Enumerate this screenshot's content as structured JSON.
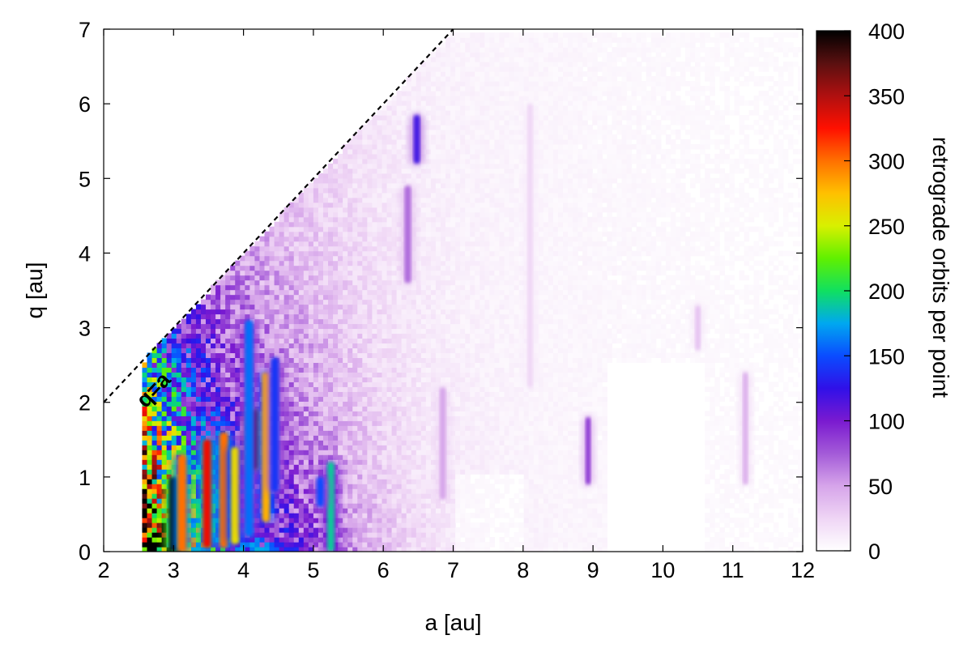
{
  "chart_data": {
    "type": "heatmap",
    "title": "",
    "xlabel": "a [au]",
    "ylabel": "q [au]",
    "xlim": [
      2,
      12
    ],
    "ylim": [
      0,
      7
    ],
    "xticks": [
      "2",
      "3",
      "4",
      "5",
      "6",
      "7",
      "8",
      "9",
      "10",
      "11",
      "12"
    ],
    "yticks": [
      "0",
      "1",
      "2",
      "3",
      "4",
      "5",
      "6",
      "7"
    ],
    "colorbar": {
      "label": "retrograde orbits per point",
      "range": [
        0,
        400
      ],
      "ticks": [
        "0",
        "50",
        "100",
        "150",
        "200",
        "250",
        "300",
        "350",
        "400"
      ],
      "colors": [
        "#ffffff",
        "#efd5f5",
        "#d6a4ea",
        "#a35ad8",
        "#7a1ad0",
        "#3010e8",
        "#0a4cff",
        "#00a8f0",
        "#10e060",
        "#60f000",
        "#d8f000",
        "#ffc000",
        "#ff7000",
        "#ff1000",
        "#b01010",
        "#5a1010",
        "#000000"
      ]
    },
    "reference_line": {
      "label": "q=a",
      "from": [
        2,
        2
      ],
      "to": [
        7,
        7
      ],
      "style": "dashed"
    },
    "background_extent": {
      "a_min": 2.55,
      "a_max": 12.0,
      "q_max": 6.9
    },
    "features": [
      {
        "a": 3.0,
        "q_min": 0.0,
        "q_max": 1.0,
        "value": 400
      },
      {
        "a": 3.12,
        "q_min": 0.0,
        "q_max": 1.3,
        "value": 300
      },
      {
        "a": 3.48,
        "q_min": 0.05,
        "q_max": 1.5,
        "value": 330
      },
      {
        "a": 3.72,
        "q_min": 0.05,
        "q_max": 1.6,
        "value": 300
      },
      {
        "a": 3.88,
        "q_min": 0.1,
        "q_max": 1.4,
        "value": 260
      },
      {
        "a": 4.15,
        "q_min": 1.1,
        "q_max": 1.9,
        "value": 400
      },
      {
        "a": 4.32,
        "q_min": 0.4,
        "q_max": 2.4,
        "value": 280
      },
      {
        "a": 4.08,
        "q_min": 0.2,
        "q_max": 3.1,
        "value": 160
      },
      {
        "a": 4.45,
        "q_min": 0.8,
        "q_max": 2.6,
        "value": 140
      },
      {
        "a": 5.25,
        "q_min": 0.0,
        "q_max": 1.2,
        "value": 190
      },
      {
        "a": 5.1,
        "q_min": 0.6,
        "q_max": 1.0,
        "value": 150
      },
      {
        "a": 6.48,
        "q_min": 5.2,
        "q_max": 5.85,
        "value": 120
      },
      {
        "a": 6.35,
        "q_min": 3.6,
        "q_max": 4.9,
        "value": 70
      },
      {
        "a": 6.85,
        "q_min": 0.7,
        "q_max": 2.2,
        "value": 50
      },
      {
        "a": 8.93,
        "q_min": 0.9,
        "q_max": 1.8,
        "value": 90
      },
      {
        "a": 11.18,
        "q_min": 0.9,
        "q_max": 2.4,
        "value": 45
      },
      {
        "a": 10.5,
        "q_min": 2.7,
        "q_max": 3.3,
        "value": 35
      },
      {
        "a": 8.1,
        "q_min": 2.2,
        "q_max": 6.0,
        "value": 25
      }
    ]
  }
}
